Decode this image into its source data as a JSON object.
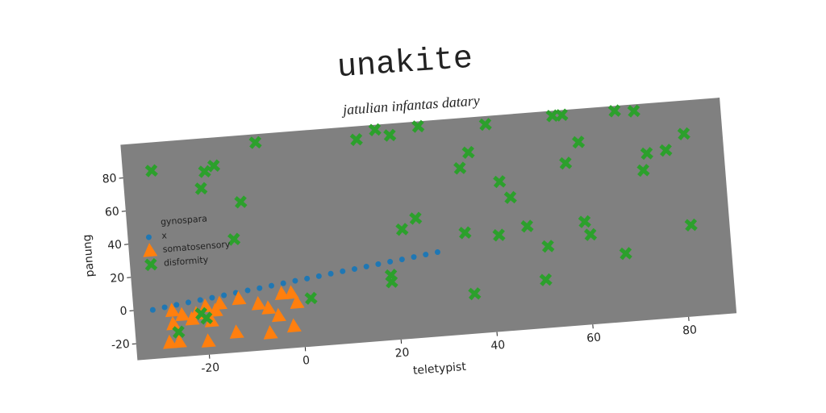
{
  "chart_data": {
    "type": "scatter",
    "title": "unakite",
    "subtitle": "jatulian infantas datary",
    "x_label": "teletypist",
    "y_label": "panung",
    "legend_title": "gynospara",
    "legend": "upper left",
    "background": "#808080",
    "xlim": [
      -35,
      90
    ],
    "ylim": [
      -30,
      100
    ],
    "xticks": [
      -20,
      0,
      20,
      40,
      60,
      80
    ],
    "yticks": [
      -20,
      0,
      20,
      40,
      60,
      80
    ],
    "series": [
      {
        "name": "x",
        "color": "#1f77b4",
        "marker": "dot",
        "x": [
          -31,
          -28.5,
          -26,
          -23.5,
          -21,
          -18.5,
          -16,
          -13.5,
          -11,
          -8.5,
          -6,
          -3.5,
          -1,
          1.5,
          4,
          6.5,
          9,
          11.5,
          14,
          16.5,
          19,
          21.5,
          24,
          26.5,
          29
        ],
        "values": [
          -0.5,
          0.5,
          1.4,
          2.3,
          3.2,
          4,
          4.9,
          5.8,
          6.7,
          7.5,
          8.4,
          9.3,
          10.2,
          11,
          11.9,
          12.8,
          13.7,
          14.5,
          15.4,
          16.3,
          17.2,
          18,
          18.9,
          19.8,
          20.7
        ]
      },
      {
        "name": "somatosensory",
        "color": "#ff7f0e",
        "marker": "triangle",
        "x": [
          -27,
          -25,
          -27,
          -28,
          -26,
          -22,
          -20,
          -18,
          -19,
          -20,
          -13,
          -14,
          -9,
          -7,
          -5,
          -4,
          -2,
          -1,
          -7,
          -2,
          -23,
          -17
        ],
        "values": [
          -2,
          -5,
          -10,
          -21,
          -21,
          -5,
          -1,
          -4,
          -10,
          -22,
          2,
          -18,
          -2,
          -5,
          -10,
          3,
          3,
          -3,
          -20,
          -17,
          -8,
          0
        ]
      },
      {
        "name": "disformity",
        "color": "#2ca02c",
        "marker": "x",
        "x": [
          -29,
          -18,
          -16,
          -19,
          -11,
          -13,
          -7,
          -26,
          -21,
          -20,
          2,
          14,
          18,
          21,
          27,
          19,
          19,
          22,
          25,
          35,
          37,
          35,
          36,
          41,
          43,
          45,
          42,
          48,
          52,
          51,
          55,
          57,
          57,
          60,
          60,
          61,
          68,
          72,
          73,
          74,
          78,
          82,
          82,
          68
        ],
        "values": [
          83,
          80,
          83,
          70,
          60,
          38,
          95,
          -15,
          -5,
          -8,
          -1,
          92,
          97,
          93,
          97,
          9,
          5,
          36,
          42,
          70,
          79,
          31,
          -6,
          95,
          60,
          50,
          28,
          32,
          19,
          -1,
          97,
          97,
          68,
          80,
          32,
          24,
          97,
          96,
          60,
          70,
          71,
          80,
          25,
          11
        ]
      }
    ]
  }
}
